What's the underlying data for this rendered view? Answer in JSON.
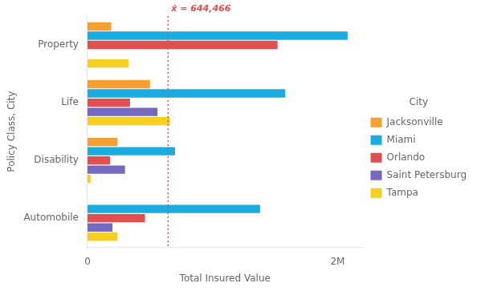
{
  "chart_data": {
    "type": "bar",
    "orientation": "horizontal",
    "categories": [
      "Property",
      "Life",
      "Disability",
      "Automobile"
    ],
    "series": [
      {
        "name": "Jacksonville",
        "color": "#F5A030",
        "values": [
          190000,
          500000,
          240000,
          0
        ]
      },
      {
        "name": "Miami",
        "color": "#1AABE0",
        "values": [
          2080000,
          1580000,
          700000,
          1380000
        ]
      },
      {
        "name": "Orlando",
        "color": "#E05050",
        "values": [
          1520000,
          340000,
          180000,
          460000
        ]
      },
      {
        "name": "Saint Petersburg",
        "color": "#7468C0",
        "values": [
          0,
          560000,
          300000,
          200000
        ]
      },
      {
        "name": "Tampa",
        "color": "#F5D020",
        "values": [
          330000,
          660000,
          25000,
          240000
        ]
      }
    ],
    "x_label": "Total Insured Value",
    "y_label": "Policy Class, City",
    "xlim": [
      0,
      2200000
    ],
    "xticks": [
      0,
      {
        "value": 2000000,
        "label": "2M"
      }
    ],
    "legend_title": "City",
    "legend": "right",
    "grid": false,
    "annotations": [
      {
        "type": "vline",
        "x": 644466,
        "label": "ẋ = 644,466",
        "color": "#E05050"
      }
    ]
  }
}
